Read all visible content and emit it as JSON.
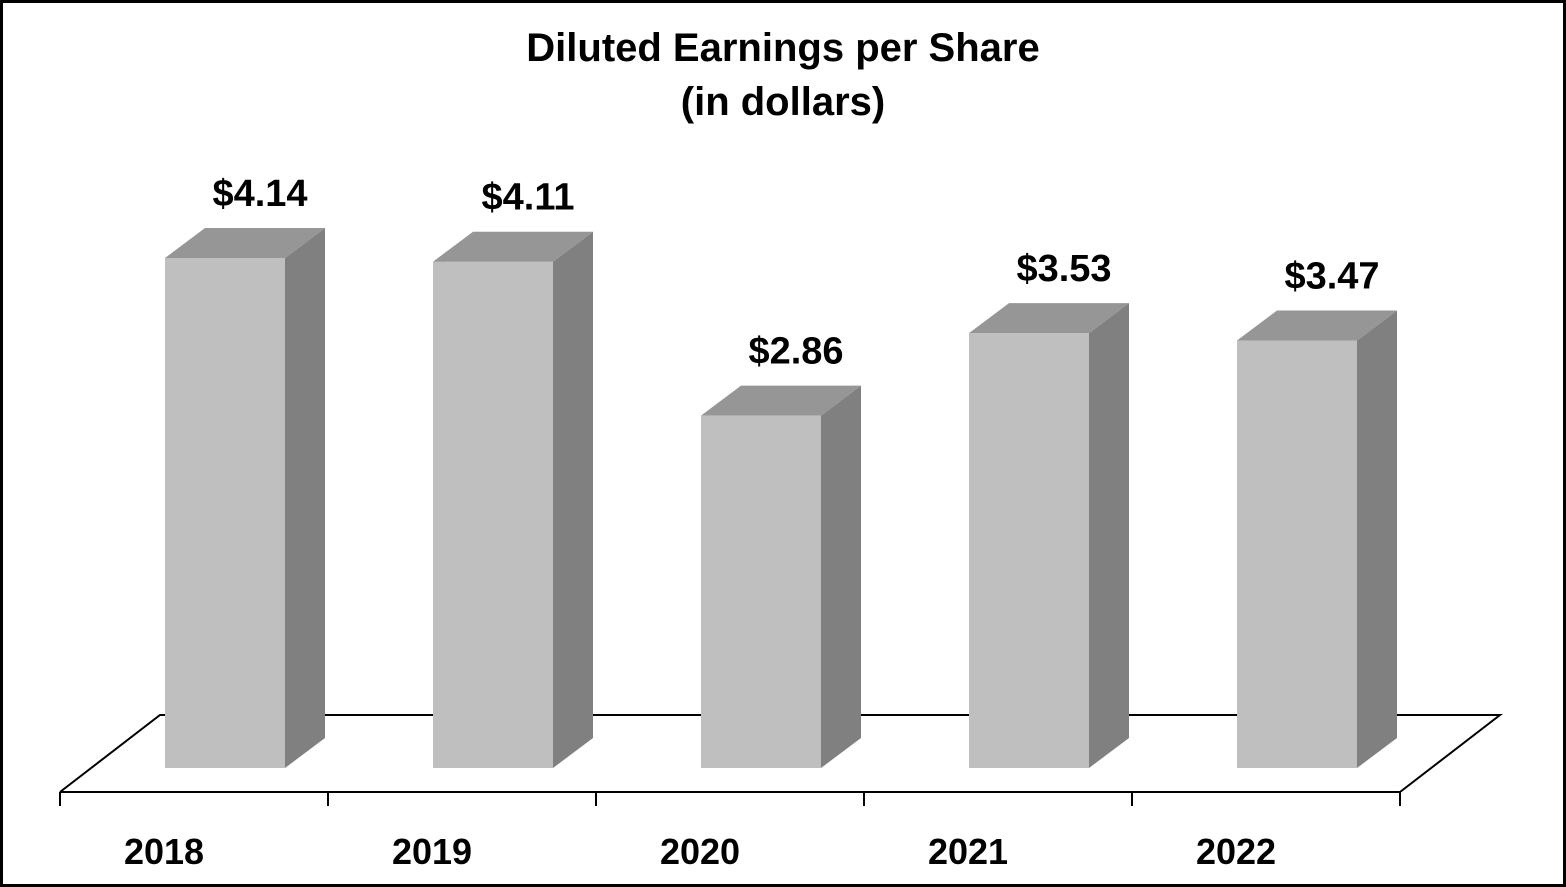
{
  "chart_data": {
    "type": "bar",
    "style": "3d-column",
    "title": "Diluted Earnings per Share",
    "subtitle": "(in dollars)",
    "categories": [
      "2018",
      "2019",
      "2020",
      "2021",
      "2022"
    ],
    "values": [
      4.14,
      4.11,
      2.86,
      3.53,
      3.47
    ],
    "data_labels": [
      "$4.14",
      "$4.11",
      "$2.86",
      "$3.53",
      "$3.47"
    ],
    "xlabel": "",
    "ylabel": "",
    "ylim": [
      0,
      4.6
    ],
    "grid": false,
    "legend": null
  },
  "colors": {
    "bar_front": "#bfbfbf",
    "bar_top": "#969696",
    "bar_side": "#808080",
    "axis": "#000000",
    "border": "#000000",
    "background": "#ffffff"
  }
}
